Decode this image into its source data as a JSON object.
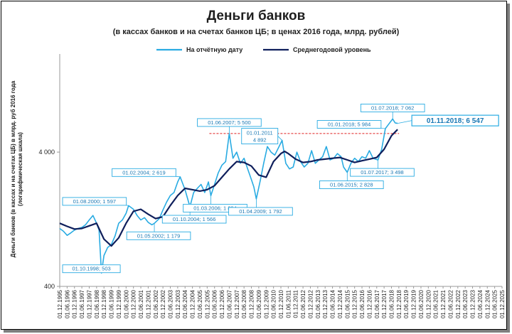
{
  "chart_data": {
    "type": "line",
    "title": "Деньги банков",
    "subtitle": "(в кассах банков и на счетах банков ЦБ; в ценах 2016 года, млрд. рублей)",
    "ylabel_line1": "Деньги банков (в кассах  и на счетах  ЦБ) в млрд. руб 2016 года",
    "ylabel_line2": "(логарифмическая  шкала)",
    "y_scale": "log",
    "ylim": [
      400,
      20000
    ],
    "yticks": [
      {
        "value": 400,
        "label": "400"
      },
      {
        "value": 4000,
        "label": "4 000"
      }
    ],
    "xlim": [
      "1995-12",
      "2025-12"
    ],
    "xtick_labels": [
      "01.12.1995",
      "01.06.1996",
      "01.12.1996",
      "01.06.1997",
      "01.12.1997",
      "01.06.1998",
      "01.12.1998",
      "01.06.1999",
      "01.12.1999",
      "01.06.2000",
      "01.12.2000",
      "01.06.2001",
      "01.12.2001",
      "01.06.2002",
      "01.12.2002",
      "01.06.2003",
      "01.12.2003",
      "01.06.2004",
      "01.12.2004",
      "01.06.2005",
      "01.12.2005",
      "01.06.2006",
      "01.12.2006",
      "01.06.2007",
      "01.12.2007",
      "01.06.2008",
      "01.12.2008",
      "01.06.2009",
      "01.12.2009",
      "01.06.2010",
      "01.12.2010",
      "01.06.2011",
      "01.12.2011",
      "01.06.2012",
      "01.12.2012",
      "01.06.2013",
      "01.12.2013",
      "01.06.2014",
      "01.12.2014",
      "01.06.2015",
      "01.12.2015",
      "01.06.2016",
      "01.12.2016",
      "01.06.2017",
      "01.12.2017",
      "01.06.2018",
      "01.12.2018",
      "01.06.2019",
      "01.12.2019",
      "01.06.2020",
      "01.12.2020",
      "01.06.2021",
      "01.12.2021",
      "01.06.2022",
      "01.12.2022",
      "01.06.2023",
      "01.12.2023",
      "01.06.2024",
      "01.12.2024",
      "01.06.2025",
      "01.12.2025"
    ],
    "legend_position": "top",
    "series": [
      {
        "name": "На отчётную дату",
        "color": "#29abe2",
        "points": [
          [
            "1995-12",
            1080
          ],
          [
            "1996-03",
            1030
          ],
          [
            "1996-06",
            960
          ],
          [
            "1996-09",
            1000
          ],
          [
            "1996-12",
            1050
          ],
          [
            "1997-03",
            1080
          ],
          [
            "1997-06",
            1100
          ],
          [
            "1997-09",
            1150
          ],
          [
            "1997-12",
            1250
          ],
          [
            "1998-03",
            1350
          ],
          [
            "1998-06",
            1180
          ],
          [
            "1998-08",
            1050
          ],
          [
            "1998-10",
            503
          ],
          [
            "1998-12",
            680
          ],
          [
            "1999-03",
            780
          ],
          [
            "1999-06",
            820
          ],
          [
            "1999-09",
            950
          ],
          [
            "1999-12",
            1180
          ],
          [
            "2000-03",
            1250
          ],
          [
            "2000-06",
            1400
          ],
          [
            "2000-08",
            1597
          ],
          [
            "2000-12",
            1500
          ],
          [
            "2001-03",
            1350
          ],
          [
            "2001-06",
            1250
          ],
          [
            "2001-09",
            1300
          ],
          [
            "2001-12",
            1200
          ],
          [
            "2002-03",
            1150
          ],
          [
            "2002-05",
            1179
          ],
          [
            "2002-09",
            1280
          ],
          [
            "2002-12",
            1480
          ],
          [
            "2003-03",
            1700
          ],
          [
            "2003-06",
            1900
          ],
          [
            "2003-09",
            2000
          ],
          [
            "2003-12",
            2400
          ],
          [
            "2004-02",
            2619
          ],
          [
            "2004-06",
            2100
          ],
          [
            "2004-10",
            1566
          ],
          [
            "2005-01",
            2000
          ],
          [
            "2005-04",
            2150
          ],
          [
            "2005-07",
            2300
          ],
          [
            "2005-10",
            2000
          ],
          [
            "2006-01",
            2400
          ],
          [
            "2006-03",
            1894
          ],
          [
            "2006-06",
            2300
          ],
          [
            "2006-09",
            2800
          ],
          [
            "2006-12",
            3200
          ],
          [
            "2007-03",
            3400
          ],
          [
            "2007-06",
            5500
          ],
          [
            "2007-09",
            3600
          ],
          [
            "2007-12",
            4000
          ],
          [
            "2008-03",
            3300
          ],
          [
            "2008-06",
            3600
          ],
          [
            "2008-09",
            3000
          ],
          [
            "2008-12",
            2500
          ],
          [
            "2009-02",
            2200
          ],
          [
            "2009-04",
            1792
          ],
          [
            "2009-07",
            2400
          ],
          [
            "2009-10",
            3300
          ],
          [
            "2010-01",
            4400
          ],
          [
            "2010-04",
            4000
          ],
          [
            "2010-07",
            3800
          ],
          [
            "2010-10",
            4300
          ],
          [
            "2011-01",
            4892
          ],
          [
            "2011-04",
            3300
          ],
          [
            "2011-07",
            3000
          ],
          [
            "2011-10",
            3100
          ],
          [
            "2012-01",
            4000
          ],
          [
            "2012-04",
            3400
          ],
          [
            "2012-07",
            3100
          ],
          [
            "2012-10",
            3300
          ],
          [
            "2013-01",
            4100
          ],
          [
            "2013-04",
            3300
          ],
          [
            "2013-07",
            3500
          ],
          [
            "2013-10",
            3700
          ],
          [
            "2014-01",
            4400
          ],
          [
            "2014-04",
            3500
          ],
          [
            "2014-07",
            3600
          ],
          [
            "2014-10",
            3900
          ],
          [
            "2015-01",
            3700
          ],
          [
            "2015-03",
            3100
          ],
          [
            "2015-06",
            2828
          ],
          [
            "2015-09",
            3300
          ],
          [
            "2015-12",
            3600
          ],
          [
            "2016-03",
            3400
          ],
          [
            "2016-06",
            3700
          ],
          [
            "2016-09",
            3600
          ],
          [
            "2016-12",
            4100
          ],
          [
            "2017-03",
            3600
          ],
          [
            "2017-07",
            3498
          ],
          [
            "2017-10",
            4200
          ],
          [
            "2018-01",
            5984
          ],
          [
            "2018-04",
            6500
          ],
          [
            "2018-07",
            7062
          ],
          [
            "2018-09",
            6600
          ],
          [
            "2018-11",
            6547
          ]
        ]
      },
      {
        "name": "Среднегодовой уровень",
        "color": "#0f1f5c",
        "points": [
          [
            "1995-12",
            1180
          ],
          [
            "1996-06",
            1120
          ],
          [
            "1996-12",
            1070
          ],
          [
            "1997-06",
            1080
          ],
          [
            "1997-12",
            1130
          ],
          [
            "1998-06",
            1180
          ],
          [
            "1998-12",
            900
          ],
          [
            "1999-06",
            800
          ],
          [
            "1999-12",
            920
          ],
          [
            "2000-06",
            1180
          ],
          [
            "2000-12",
            1450
          ],
          [
            "2001-06",
            1500
          ],
          [
            "2001-12",
            1380
          ],
          [
            "2002-06",
            1280
          ],
          [
            "2002-12",
            1320
          ],
          [
            "2003-06",
            1600
          ],
          [
            "2003-12",
            1900
          ],
          [
            "2004-06",
            2150
          ],
          [
            "2004-12",
            2100
          ],
          [
            "2005-06",
            2050
          ],
          [
            "2005-12",
            2100
          ],
          [
            "2006-06",
            2250
          ],
          [
            "2006-12",
            2600
          ],
          [
            "2007-06",
            3000
          ],
          [
            "2007-12",
            3400
          ],
          [
            "2008-06",
            3350
          ],
          [
            "2008-12",
            3150
          ],
          [
            "2009-06",
            2700
          ],
          [
            "2009-12",
            2600
          ],
          [
            "2010-06",
            3400
          ],
          [
            "2010-12",
            3900
          ],
          [
            "2011-03",
            4050
          ],
          [
            "2011-06",
            3900
          ],
          [
            "2011-12",
            3550
          ],
          [
            "2012-06",
            3350
          ],
          [
            "2012-12",
            3400
          ],
          [
            "2013-06",
            3500
          ],
          [
            "2013-12",
            3550
          ],
          [
            "2014-06",
            3600
          ],
          [
            "2014-12",
            3650
          ],
          [
            "2015-06",
            3500
          ],
          [
            "2015-12",
            3350
          ],
          [
            "2016-06",
            3450
          ],
          [
            "2016-12",
            3550
          ],
          [
            "2017-06",
            3650
          ],
          [
            "2017-12",
            4200
          ],
          [
            "2018-06",
            5300
          ],
          [
            "2018-11",
            5900
          ]
        ]
      }
    ],
    "reference_line": {
      "value": 5500,
      "from": "2007-06",
      "to": "2018-11",
      "style": "dashed",
      "color": "#e02020"
    },
    "annotations": [
      {
        "text": "01.10.1998;   503",
        "date": "1998-10",
        "value": 503,
        "box": "left"
      },
      {
        "text": "01.08.2000;   1 597",
        "date": "2000-08",
        "value": 1597,
        "box": "left"
      },
      {
        "text": "01.05.2002;   1 179",
        "date": "2002-05",
        "value": 1179,
        "box": "below"
      },
      {
        "text": "01.02.2004;   2 619",
        "date": "2004-02",
        "value": 2619,
        "box": "left"
      },
      {
        "text": "01.10.2004;   1 566",
        "date": "2004-10",
        "value": 1566,
        "box": "below"
      },
      {
        "text": "01.03.2006;   1 894",
        "date": "2006-03",
        "value": 1894,
        "box": "below"
      },
      {
        "text": "01.06.2007;   5 500",
        "date": "2007-06",
        "value": 5500,
        "box": "above"
      },
      {
        "text": "01.04.2009;   1 792",
        "date": "2009-04",
        "value": 1792,
        "box": "below"
      },
      {
        "text": "01.01.2011",
        "text2": "4 892",
        "date": "2011-01",
        "value": 4892,
        "box": "left"
      },
      {
        "text": "01.06.2015;   2 828",
        "date": "2015-06",
        "value": 2828,
        "box": "below"
      },
      {
        "text": "01.07.2017;   3 498",
        "date": "2017-07",
        "value": 3498,
        "box": "below"
      },
      {
        "text": "01.01.2018;   5 984",
        "date": "2018-01",
        "value": 5984,
        "box": "left"
      },
      {
        "text": "01.07.2018;   7 062",
        "date": "2018-07",
        "value": 7062,
        "box": "above"
      },
      {
        "text": "01.11.2018;   6 547",
        "date": "2018-11",
        "value": 6547,
        "box": "right",
        "big": true
      }
    ]
  }
}
